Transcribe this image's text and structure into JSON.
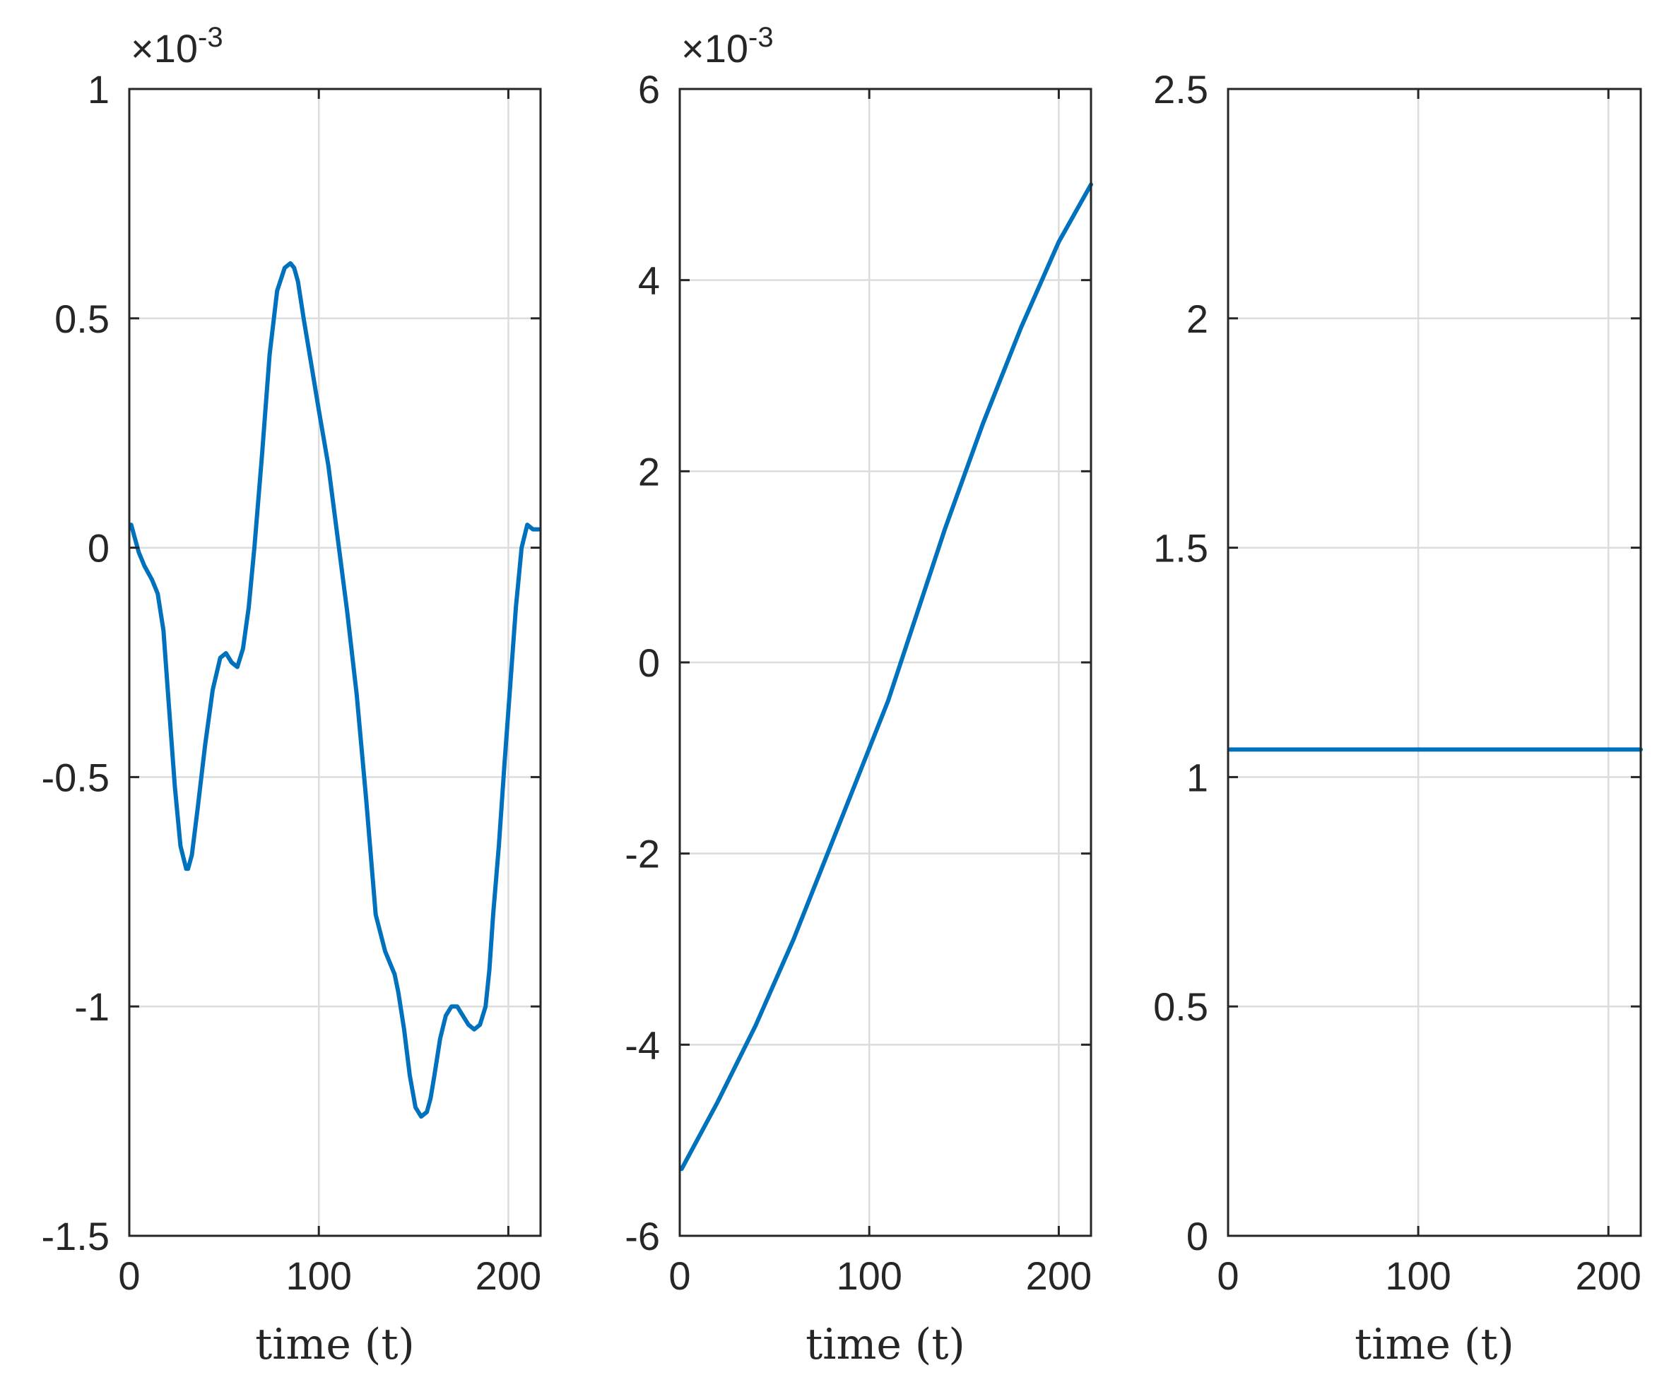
{
  "chart_data": [
    {
      "type": "line",
      "title": "",
      "xlabel": "time (t)",
      "ylabel": "",
      "xlim": [
        0,
        217
      ],
      "ylim": [
        -1.5,
        1
      ],
      "y_multiplier": {
        "base": "×10",
        "exponent": "-3"
      },
      "xticks": [
        0,
        100,
        200
      ],
      "xtick_labels": [
        "0",
        "100",
        "200"
      ],
      "yticks": [
        -1.5,
        -1,
        -0.5,
        0,
        0.5,
        1
      ],
      "ytick_labels": [
        "-1.5",
        "-1",
        "-0.5",
        "0",
        "0.5",
        "1"
      ],
      "grid": true,
      "series": [
        {
          "color": "#0072BD",
          "x": [
            1,
            3,
            5,
            8,
            12,
            15,
            18,
            21,
            24,
            27,
            30,
            31,
            33,
            36,
            40,
            44,
            48,
            51,
            54,
            57,
            60,
            63,
            66,
            70,
            74,
            78,
            82,
            85,
            87,
            89,
            92,
            96,
            100,
            105,
            110,
            115,
            120,
            125,
            130,
            135,
            138,
            140,
            142,
            145,
            148,
            151,
            154,
            157,
            159,
            161,
            164,
            167,
            170,
            173,
            176,
            179,
            182,
            185,
            188,
            190,
            192,
            195,
            198,
            201,
            204,
            207,
            210,
            213,
            216
          ],
          "y": [
            0.05,
            0.02,
            -0.01,
            -0.04,
            -0.07,
            -0.1,
            -0.18,
            -0.35,
            -0.52,
            -0.65,
            -0.7,
            -0.7,
            -0.67,
            -0.57,
            -0.43,
            -0.31,
            -0.24,
            -0.23,
            -0.25,
            -0.26,
            -0.22,
            -0.13,
            0.0,
            0.2,
            0.42,
            0.56,
            0.61,
            0.62,
            0.61,
            0.58,
            0.5,
            0.4,
            0.3,
            0.18,
            0.02,
            -0.14,
            -0.32,
            -0.55,
            -0.8,
            -0.88,
            -0.91,
            -0.93,
            -0.97,
            -1.05,
            -1.15,
            -1.22,
            -1.24,
            -1.23,
            -1.2,
            -1.15,
            -1.07,
            -1.02,
            -1.0,
            -1.0,
            -1.02,
            -1.04,
            -1.05,
            -1.04,
            -1.0,
            -0.92,
            -0.8,
            -0.65,
            -0.47,
            -0.3,
            -0.13,
            0.0,
            0.05,
            0.04,
            0.04
          ]
        }
      ]
    },
    {
      "type": "line",
      "title": "",
      "xlabel": "time (t)",
      "ylabel": "",
      "xlim": [
        0,
        217
      ],
      "ylim": [
        -6,
        6
      ],
      "y_multiplier": {
        "base": "×10",
        "exponent": "-3"
      },
      "xticks": [
        0,
        100,
        200
      ],
      "xtick_labels": [
        "0",
        "100",
        "200"
      ],
      "yticks": [
        -6,
        -4,
        -2,
        0,
        2,
        4,
        6
      ],
      "ytick_labels": [
        "-6",
        "-4",
        "-2",
        "0",
        "2",
        "4",
        "6"
      ],
      "grid": true,
      "series": [
        {
          "color": "#0072BD",
          "x": [
            1,
            20,
            40,
            60,
            80,
            100,
            110,
            120,
            140,
            160,
            180,
            200,
            217
          ],
          "y": [
            -5.3,
            -4.6,
            -3.8,
            -2.9,
            -1.9,
            -0.9,
            -0.4,
            0.2,
            1.4,
            2.5,
            3.5,
            4.4,
            5.0
          ]
        }
      ]
    },
    {
      "type": "line",
      "title": "",
      "xlabel": "time (t)",
      "ylabel": "",
      "xlim": [
        0,
        217
      ],
      "ylim": [
        0,
        2.5
      ],
      "xticks": [
        0,
        100,
        200
      ],
      "xtick_labels": [
        "0",
        "100",
        "200"
      ],
      "yticks": [
        0,
        0.5,
        1,
        1.5,
        2,
        2.5
      ],
      "ytick_labels": [
        "0",
        "0.5",
        "1",
        "1.5",
        "2",
        "2.5"
      ],
      "grid": true,
      "series": [
        {
          "color": "#0072BD",
          "x": [
            1,
            217
          ],
          "y": [
            1.06,
            1.06
          ]
        }
      ]
    }
  ]
}
